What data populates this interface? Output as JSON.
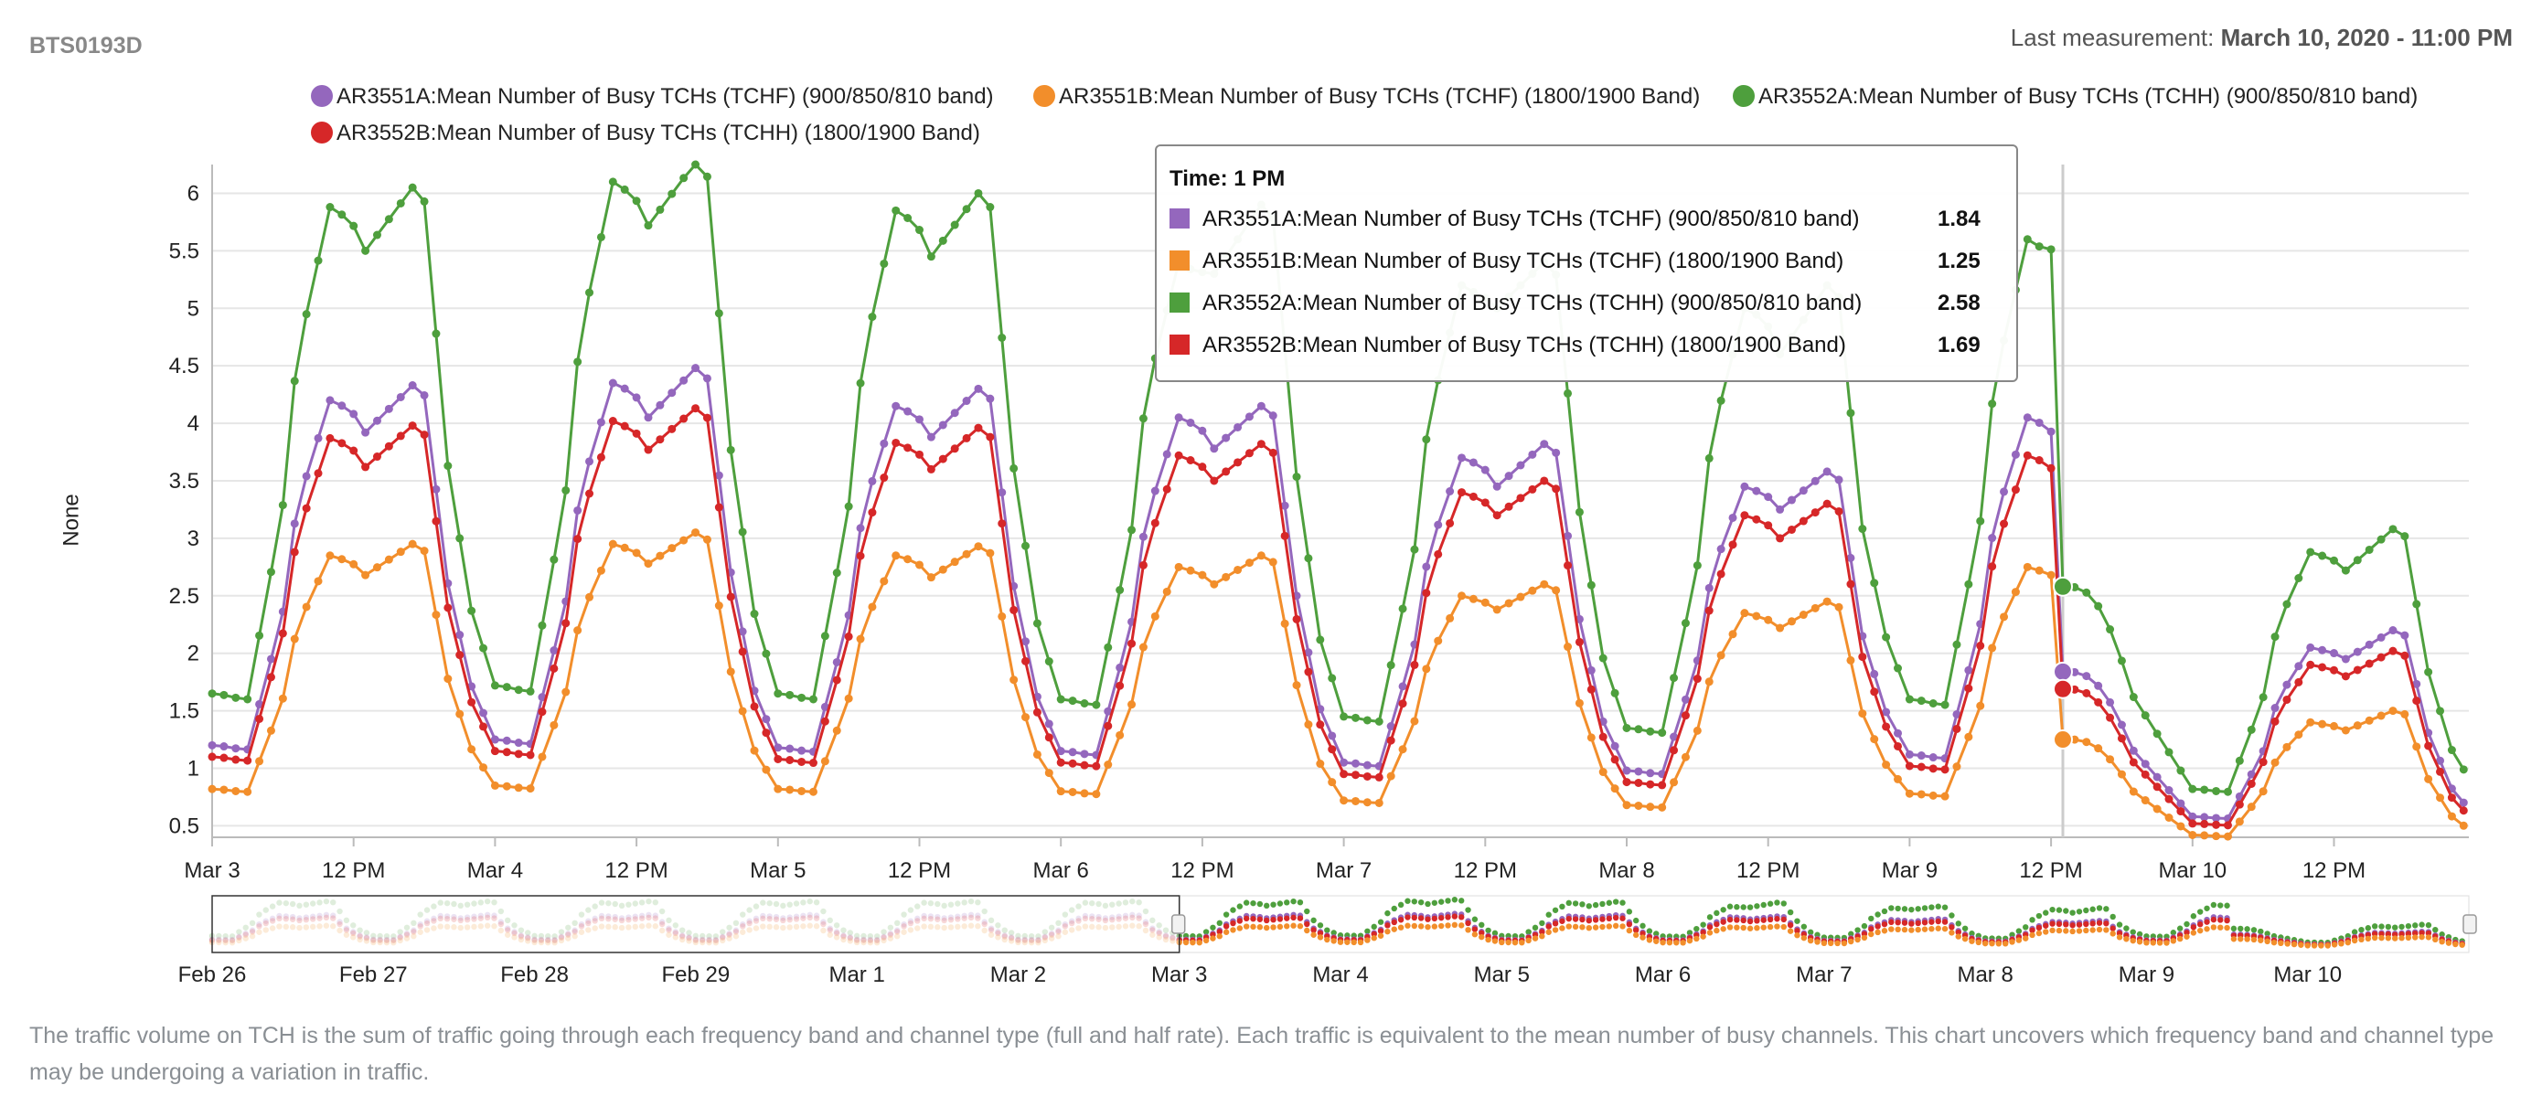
{
  "header": {
    "title": "BTS0193D",
    "last_measurement_label": "Last measurement:",
    "last_measurement_value": "March 10, 2020 - 11:00 PM"
  },
  "chart_data": {
    "type": "line",
    "ylabel": "None",
    "ylim": [
      0.4,
      6.25
    ],
    "yticks": [
      "0.5",
      "1",
      "1.5",
      "2",
      "2.5",
      "3",
      "3.5",
      "4",
      "4.5",
      "5",
      "5.5",
      "6"
    ],
    "xticks": [
      "Mar 3",
      "12 PM",
      "Mar 4",
      "12 PM",
      "Mar 5",
      "12 PM",
      "Mar 6",
      "12 PM",
      "Mar 7",
      "12 PM",
      "Mar 8",
      "12 PM",
      "Mar 9",
      "12 PM",
      "Mar 10",
      "12 PM"
    ],
    "x_range": [
      "2020-03-03 00:00",
      "2020-03-10 23:00"
    ],
    "x_resolution": "hourly",
    "series": [
      {
        "name": "AR3551A:Mean Number of Busy TCHs (TCHF) (900/850/810 band)",
        "color": "#9467bd",
        "daily_low": [
          1.2,
          1.25,
          1.18,
          1.15,
          1.05,
          0.98,
          1.12,
          0.58
        ],
        "daily_peak1": [
          4.2,
          4.35,
          4.15,
          4.05,
          3.7,
          3.45,
          4.05,
          2.05
        ],
        "daily_mid": [
          3.92,
          4.05,
          3.88,
          3.78,
          3.45,
          3.25,
          3.75,
          1.95
        ],
        "daily_peak2": [
          4.33,
          4.48,
          4.3,
          4.15,
          3.82,
          3.58,
          1.84,
          2.2
        ]
      },
      {
        "name": "AR3551B:Mean Number of Busy TCHs (TCHF) (1800/1900 Band)",
        "color": "#f28e2b",
        "daily_low": [
          0.82,
          0.85,
          0.82,
          0.8,
          0.72,
          0.68,
          0.78,
          0.42
        ],
        "daily_peak1": [
          2.85,
          2.95,
          2.85,
          2.75,
          2.5,
          2.35,
          2.75,
          1.4
        ],
        "daily_mid": [
          2.68,
          2.78,
          2.66,
          2.6,
          2.38,
          2.22,
          2.6,
          1.33
        ],
        "daily_peak2": [
          2.95,
          3.05,
          2.93,
          2.85,
          2.6,
          2.45,
          1.25,
          1.5
        ]
      },
      {
        "name": "AR3552A:Mean Number of Busy TCHs (TCHH) (900/850/810 band)",
        "color": "#4e9f3d",
        "daily_low": [
          1.65,
          1.72,
          1.65,
          1.6,
          1.45,
          1.35,
          1.6,
          0.82
        ],
        "daily_peak1": [
          5.88,
          6.1,
          5.85,
          5.4,
          5.2,
          5.0,
          5.6,
          2.88
        ],
        "daily_mid": [
          5.5,
          5.72,
          5.45,
          5.3,
          5.0,
          4.6,
          5.5,
          2.72
        ],
        "daily_peak2": [
          6.05,
          6.27,
          6.0,
          5.9,
          5.4,
          5.2,
          2.58,
          3.08
        ]
      },
      {
        "name": "AR3552B:Mean Number of Busy TCHs (TCHH) (1800/1900 Band)",
        "color": "#d62728",
        "daily_low": [
          1.1,
          1.15,
          1.08,
          1.05,
          0.95,
          0.88,
          1.02,
          0.52
        ],
        "daily_peak1": [
          3.87,
          4.02,
          3.83,
          3.72,
          3.4,
          3.2,
          3.72,
          1.9
        ],
        "daily_mid": [
          3.62,
          3.77,
          3.6,
          3.5,
          3.2,
          3.0,
          3.45,
          1.8
        ],
        "daily_peak2": [
          3.98,
          4.13,
          3.96,
          3.82,
          3.5,
          3.3,
          1.69,
          2.02
        ]
      }
    ],
    "navigator": {
      "xticks": [
        "Feb 26",
        "Feb 27",
        "Feb 28",
        "Feb 29",
        "Mar 1",
        "Mar 2",
        "Mar 3",
        "Mar 4",
        "Mar 5",
        "Mar 6",
        "Mar 7",
        "Mar 8",
        "Mar 9",
        "Mar 10"
      ],
      "selected_range": [
        "Mar 3",
        "Mar 10"
      ]
    },
    "tooltip": {
      "title": "Time: 1 PM",
      "rows": [
        {
          "label": "AR3551A:Mean Number of Busy TCHs (TCHF) (900/850/810 band)",
          "value": "1.84",
          "color": "#9467bd"
        },
        {
          "label": "AR3551B:Mean Number of Busy TCHs (TCHF) (1800/1900 Band)",
          "value": "1.25",
          "color": "#f28e2b"
        },
        {
          "label": "AR3552A:Mean Number of Busy TCHs (TCHH) (900/850/810 band)",
          "value": "2.58",
          "color": "#4e9f3d"
        },
        {
          "label": "AR3552B:Mean Number of Busy TCHs (TCHH) (1800/1900 Band)",
          "value": "1.69",
          "color": "#d62728"
        }
      ]
    }
  },
  "caption": "The traffic volume on TCH is the sum of traffic going through each frequency band and channel type (full and half rate). Each traffic is equivalent to the mean number of busy channels. This chart uncovers which frequency band and channel type may be undergoing a variation in traffic."
}
